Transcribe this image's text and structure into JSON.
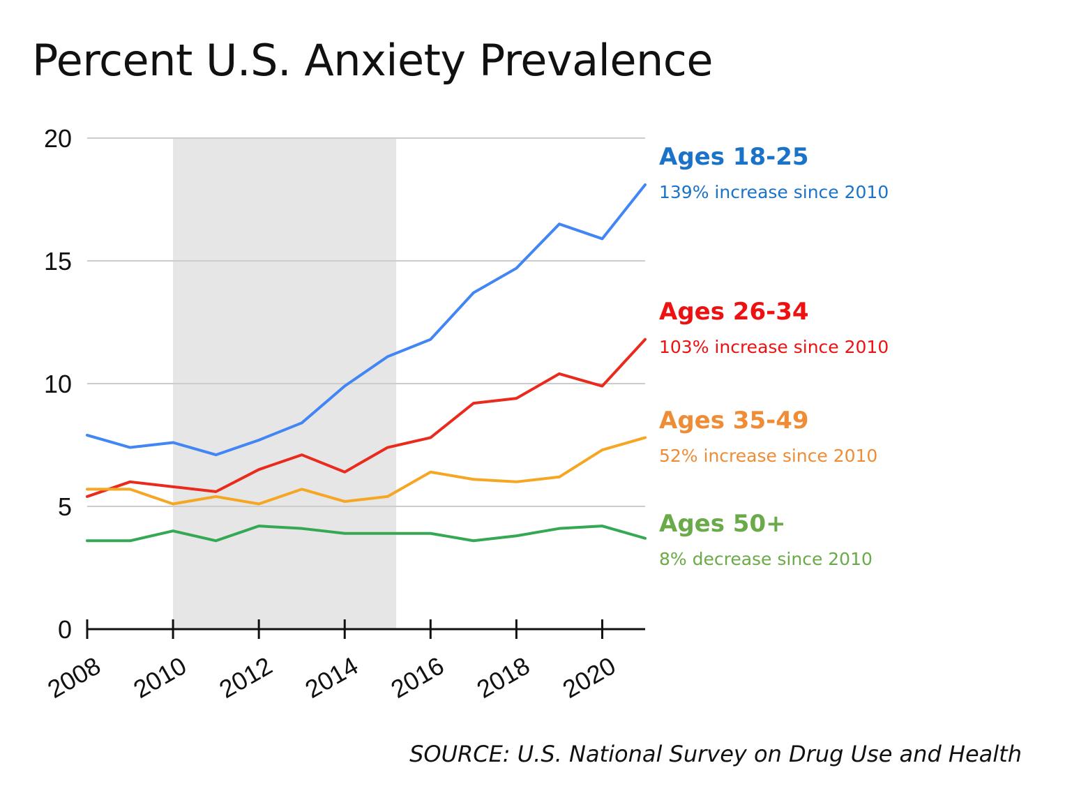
{
  "chart_data": {
    "type": "line",
    "title": "Percent U.S. Anxiety Prevalence",
    "xlabel": "",
    "ylabel": "",
    "x": [
      2008,
      2009,
      2010,
      2011,
      2012,
      2013,
      2014,
      2015,
      2016,
      2017,
      2018,
      2019,
      2020,
      2021
    ],
    "x_ticks": [
      "2008",
      "2010",
      "2012",
      "2014",
      "2016",
      "2018",
      "2020"
    ],
    "y_ticks": [
      "0",
      "5",
      "10",
      "15",
      "20"
    ],
    "xlim": [
      2008,
      2021
    ],
    "ylim": [
      0,
      20
    ],
    "grid": true,
    "shaded_range": [
      2010,
      2015.2
    ],
    "series": [
      {
        "name": "Ages 18-25",
        "note": "139% increase since 2010",
        "color": "#4285f4",
        "label_color": "#1a73c8",
        "values": [
          7.9,
          7.4,
          7.6,
          7.1,
          7.7,
          8.4,
          9.9,
          11.1,
          11.8,
          13.7,
          14.7,
          16.5,
          15.9,
          18.1
        ]
      },
      {
        "name": "Ages 26-34",
        "note": "103% increase since 2010",
        "color": "#ea2a1c",
        "label_color": "#ee1111",
        "values": [
          5.4,
          6.0,
          5.8,
          5.6,
          6.5,
          7.1,
          6.4,
          7.4,
          7.8,
          9.2,
          9.4,
          10.4,
          9.9,
          11.8
        ]
      },
      {
        "name": "Ages 35-49",
        "note": "52% increase since 2010",
        "color": "#f5a623",
        "label_color": "#ee8d35",
        "values": [
          5.7,
          5.7,
          5.1,
          5.4,
          5.1,
          5.7,
          5.2,
          5.4,
          6.4,
          6.1,
          6.0,
          6.2,
          7.3,
          7.8
        ]
      },
      {
        "name": "Ages 50+",
        "note": "8% decrease since 2010",
        "color": "#34a853",
        "label_color": "#6aaa48",
        "values": [
          3.6,
          3.6,
          4.0,
          3.6,
          4.2,
          4.1,
          3.9,
          3.9,
          3.9,
          3.6,
          3.8,
          4.1,
          4.2,
          3.7
        ]
      }
    ],
    "source": "SOURCE: U.S. National Survey on Drug Use and Health"
  }
}
